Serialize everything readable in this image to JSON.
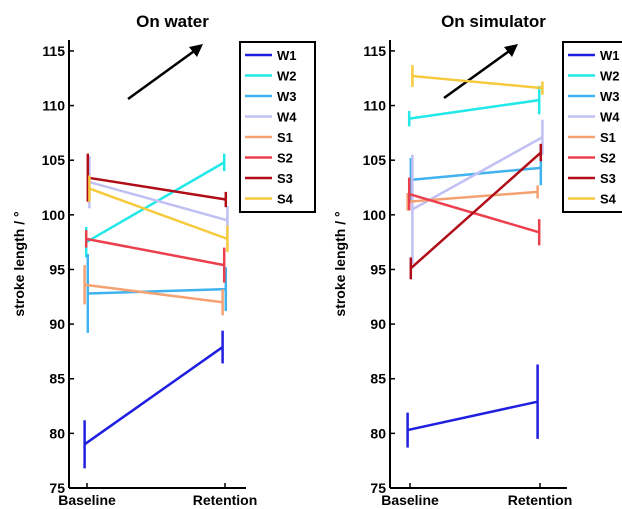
{
  "chart_data": [
    {
      "type": "line",
      "title": "On water",
      "ylabel": "stroke length / °",
      "xlabel": "",
      "categories": [
        "Baseline",
        "Retention"
      ],
      "ylim": [
        75,
        116
      ],
      "yticks": [
        75,
        80,
        85,
        90,
        95,
        100,
        105,
        110,
        115
      ],
      "grid": false,
      "legend_position": "top-right",
      "annotation": "arrow pointing up-right (increasing direction)",
      "series": [
        {
          "name": "W1",
          "color": "#1f1fe0",
          "values": [
            79.0,
            87.9
          ],
          "error": [
            2.2,
            1.5
          ]
        },
        {
          "name": "W2",
          "color": "#22e8e8",
          "values": [
            97.5,
            104.8
          ],
          "error": [
            1.4,
            0.8
          ]
        },
        {
          "name": "W3",
          "color": "#3fb2ef",
          "values": [
            92.8,
            93.2
          ],
          "error": [
            3.6,
            2.0
          ]
        },
        {
          "name": "W4",
          "color": "#c0c0f4",
          "values": [
            103.0,
            99.5
          ],
          "error": [
            2.4,
            1.3
          ]
        },
        {
          "name": "S1",
          "color": "#f5a273",
          "values": [
            93.6,
            92.0
          ],
          "error": [
            1.8,
            1.2
          ]
        },
        {
          "name": "S2",
          "color": "#ec3f4e",
          "values": [
            97.8,
            95.4
          ],
          "error": [
            0.8,
            1.6
          ]
        },
        {
          "name": "S3",
          "color": "#b00d18",
          "values": [
            103.4,
            101.4
          ],
          "error": [
            2.2,
            0.7
          ]
        },
        {
          "name": "S4",
          "color": "#f7c93c",
          "values": [
            102.4,
            97.8
          ],
          "error": [
            1.2,
            1.2
          ]
        }
      ]
    },
    {
      "type": "line",
      "title": "On simulator",
      "ylabel": "stroke length / °",
      "xlabel": "",
      "categories": [
        "Baseline",
        "Retention"
      ],
      "ylim": [
        75,
        116
      ],
      "yticks": [
        75,
        80,
        85,
        90,
        95,
        100,
        105,
        110,
        115
      ],
      "grid": false,
      "legend_position": "top-right",
      "annotation": "arrow pointing up-right (increasing direction)",
      "series": [
        {
          "name": "W1",
          "color": "#1f1fe0",
          "values": [
            80.3,
            82.9
          ],
          "error": [
            1.6,
            3.4
          ]
        },
        {
          "name": "W2",
          "color": "#22e8e8",
          "values": [
            108.8,
            110.5
          ],
          "error": [
            0.7,
            1.3
          ]
        },
        {
          "name": "W3",
          "color": "#3fb2ef",
          "values": [
            103.2,
            104.3
          ],
          "error": [
            2.0,
            1.6
          ]
        },
        {
          "name": "W4",
          "color": "#c0c0f4",
          "values": [
            100.5,
            107.1
          ],
          "error": [
            5.0,
            1.6
          ]
        },
        {
          "name": "S1",
          "color": "#f5a273",
          "values": [
            101.2,
            102.1
          ],
          "error": [
            0.8,
            0.6
          ]
        },
        {
          "name": "S2",
          "color": "#ec3f4e",
          "values": [
            101.9,
            98.4
          ],
          "error": [
            1.5,
            1.2
          ]
        },
        {
          "name": "S3",
          "color": "#b00d18",
          "values": [
            95.1,
            105.7
          ],
          "error": [
            1.0,
            0.8
          ]
        },
        {
          "name": "S4",
          "color": "#f7c93c",
          "values": [
            112.7,
            111.6
          ],
          "error": [
            1.0,
            0.6
          ]
        }
      ]
    }
  ]
}
